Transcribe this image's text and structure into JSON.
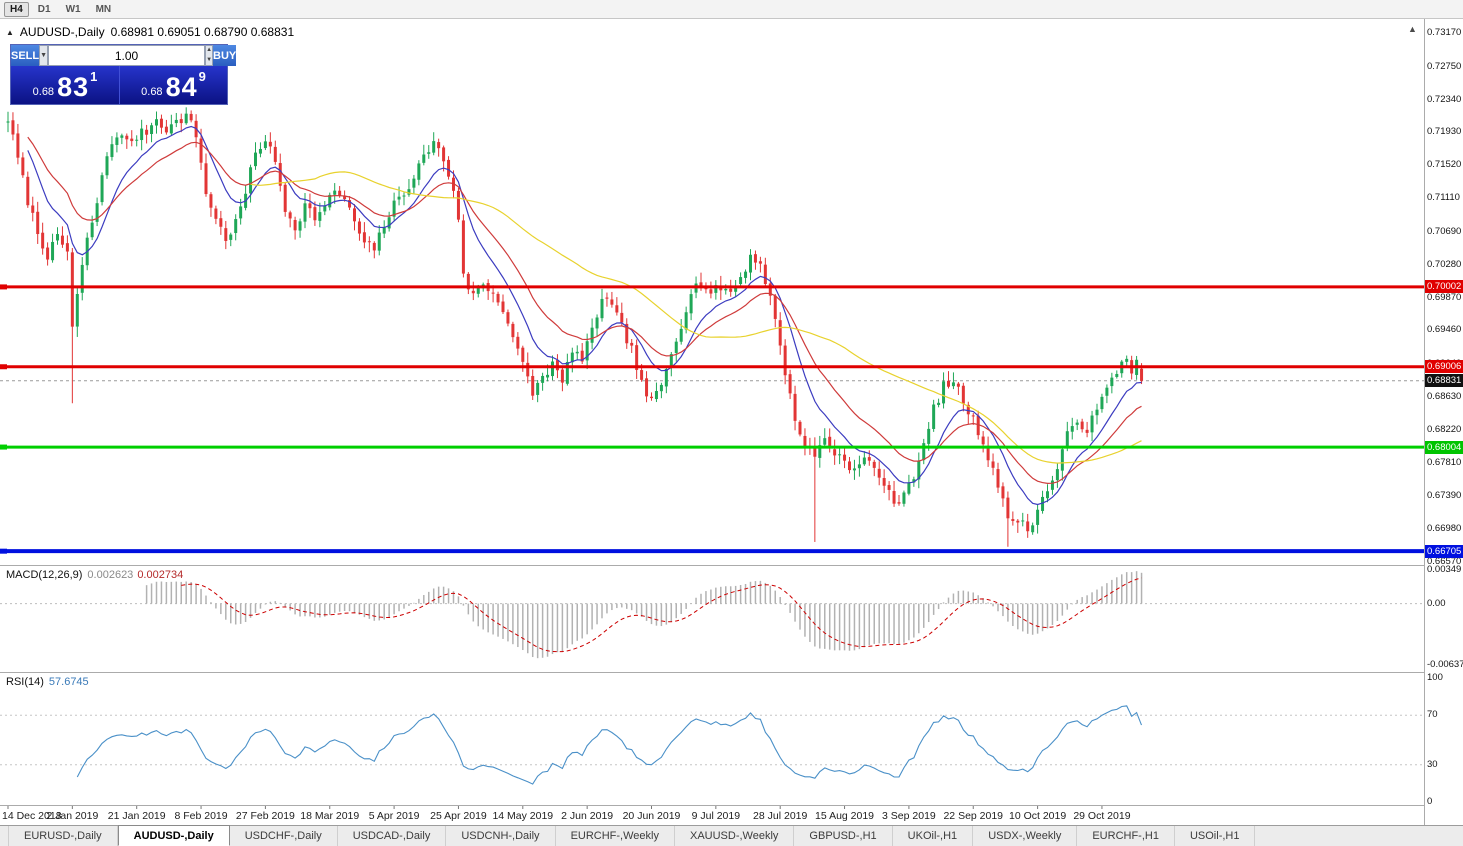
{
  "toolbar": {
    "buttons": [
      {
        "label": "H4",
        "active": true
      },
      {
        "label": "D1",
        "active": false
      },
      {
        "label": "W1",
        "active": false
      },
      {
        "label": "MN",
        "active": false
      }
    ]
  },
  "icons": {
    "one_click_toggle": "▲",
    "scroll_marker": "▲",
    "combo_arrow": "▼",
    "spin_up": "▲",
    "spin_down": "▼"
  },
  "chart_header": {
    "symbol": "AUDUSD-,Daily",
    "ohlc": "0.68981 0.69051 0.68790 0.68831"
  },
  "trade_panel": {
    "sell_label": "SELL",
    "buy_label": "BUY",
    "lot_value": "1.00",
    "sell_price": {
      "prefix": "0.68",
      "big": "83",
      "sup": "1"
    },
    "buy_price": {
      "prefix": "0.68",
      "big": "84",
      "sup": "9"
    }
  },
  "indicators": {
    "macd_label": "MACD(12,26,9)",
    "macd_value_main": "0.002623",
    "macd_value_signal": "0.002734",
    "rsi_label": "RSI(14)",
    "rsi_value": "57.6745"
  },
  "tabbar": {
    "tabs": [
      {
        "label": "EURUSD-,Daily",
        "active": false
      },
      {
        "label": "AUDUSD-,Daily",
        "active": true
      },
      {
        "label": "USDCHF-,Daily",
        "active": false
      },
      {
        "label": "USDCAD-,Daily",
        "active": false
      },
      {
        "label": "USDCNH-,Daily",
        "active": false
      },
      {
        "label": "EURCHF-,Weekly",
        "active": false
      },
      {
        "label": "XAUUSD-,Weekly",
        "active": false
      },
      {
        "label": "GBPUSD-,H1",
        "active": false
      },
      {
        "label": "UKOil-,H1",
        "active": false
      },
      {
        "label": "USDX-,Weekly",
        "active": false
      },
      {
        "label": "EURCHF-,H1",
        "active": false
      },
      {
        "label": "USOil-,H1",
        "active": false
      }
    ]
  },
  "chart_data": {
    "type": "candlestick",
    "symbol": "AUDUSD-",
    "timeframe": "Daily",
    "title": "AUDUSD-,Daily",
    "last_ohlc": {
      "open": 0.68981,
      "high": 0.69051,
      "low": 0.6879,
      "close": 0.68831
    },
    "bars": 230,
    "bars_per_label": 13,
    "noise_seed": 7,
    "up_color": "#1fa757",
    "down_color": "#e23535",
    "x_labels": [
      "14 Dec 2018",
      "2 Jan 2019",
      "21 Jan 2019",
      "8 Feb 2019",
      "27 Feb 2019",
      "18 Mar 2019",
      "5 Apr 2019",
      "25 Apr 2019",
      "14 May 2019",
      "2 Jun 2019",
      "20 Jun 2019",
      "9 Jul 2019",
      "28 Jul 2019",
      "15 Aug 2019",
      "3 Sep 2019",
      "22 Sep 2019",
      "10 Oct 2019",
      "29 Oct 2019"
    ],
    "y_ticks": [
      {
        "v": 0.7317,
        "label": "0.73170"
      },
      {
        "v": 0.7275,
        "label": "0.72750"
      },
      {
        "v": 0.7234,
        "label": "0.72340"
      },
      {
        "v": 0.7193,
        "label": "0.71930"
      },
      {
        "v": 0.7152,
        "label": "0.71520"
      },
      {
        "v": 0.7111,
        "label": "0.71110"
      },
      {
        "v": 0.7069,
        "label": "0.70690"
      },
      {
        "v": 0.7028,
        "label": "0.70280"
      },
      {
        "v": 0.6987,
        "label": "0.69870"
      },
      {
        "v": 0.6946,
        "label": "0.69460"
      },
      {
        "v": 0.6904,
        "label": "0.69040"
      },
      {
        "v": 0.6863,
        "label": "0.68630"
      },
      {
        "v": 0.6822,
        "label": "0.68220"
      },
      {
        "v": 0.6781,
        "label": "0.67810"
      },
      {
        "v": 0.6739,
        "label": "0.67390"
      },
      {
        "v": 0.6698,
        "label": "0.66980"
      },
      {
        "v": 0.6657,
        "label": "0.66570"
      }
    ],
    "price_anchors": [
      [
        0,
        0.721
      ],
      [
        2,
        0.716
      ],
      [
        4,
        0.7108
      ],
      [
        6,
        0.7068
      ],
      [
        8,
        0.704
      ],
      [
        10,
        0.706
      ],
      [
        12,
        0.7045
      ],
      [
        13,
        0.695
      ],
      [
        14,
        0.699
      ],
      [
        16,
        0.7058
      ],
      [
        18,
        0.7105
      ],
      [
        20,
        0.7165
      ],
      [
        22,
        0.7192
      ],
      [
        24,
        0.718
      ],
      [
        26,
        0.7188
      ],
      [
        28,
        0.7195
      ],
      [
        30,
        0.721
      ],
      [
        32,
        0.7198
      ],
      [
        34,
        0.7205
      ],
      [
        36,
        0.7215
      ],
      [
        38,
        0.719
      ],
      [
        40,
        0.7118
      ],
      [
        42,
        0.7085
      ],
      [
        44,
        0.706
      ],
      [
        46,
        0.708
      ],
      [
        48,
        0.7118
      ],
      [
        50,
        0.7168
      ],
      [
        52,
        0.7185
      ],
      [
        54,
        0.7155
      ],
      [
        56,
        0.7098
      ],
      [
        58,
        0.7075
      ],
      [
        60,
        0.7102
      ],
      [
        62,
        0.7088
      ],
      [
        64,
        0.7098
      ],
      [
        66,
        0.7122
      ],
      [
        68,
        0.7108
      ],
      [
        70,
        0.7082
      ],
      [
        72,
        0.7052
      ],
      [
        74,
        0.7048
      ],
      [
        76,
        0.7078
      ],
      [
        78,
        0.7102
      ],
      [
        80,
        0.7118
      ],
      [
        82,
        0.7138
      ],
      [
        84,
        0.7162
      ],
      [
        86,
        0.7182
      ],
      [
        88,
        0.7158
      ],
      [
        90,
        0.7122
      ],
      [
        91,
        0.7088
      ],
      [
        92,
        0.7012
      ],
      [
        94,
        0.699
      ],
      [
        96,
        0.7004
      ],
      [
        98,
        0.6992
      ],
      [
        100,
        0.6974
      ],
      [
        102,
        0.6938
      ],
      [
        104,
        0.6902
      ],
      [
        106,
        0.6868
      ],
      [
        108,
        0.6888
      ],
      [
        110,
        0.6904
      ],
      [
        112,
        0.688
      ],
      [
        114,
        0.6924
      ],
      [
        116,
        0.6908
      ],
      [
        118,
        0.6944
      ],
      [
        120,
        0.6988
      ],
      [
        122,
        0.6974
      ],
      [
        124,
        0.695
      ],
      [
        126,
        0.6922
      ],
      [
        128,
        0.6878
      ],
      [
        130,
        0.6856
      ],
      [
        132,
        0.6876
      ],
      [
        134,
        0.6918
      ],
      [
        136,
        0.6954
      ],
      [
        138,
        0.6996
      ],
      [
        140,
        0.7006
      ],
      [
        142,
        0.6992
      ],
      [
        144,
        0.7
      ],
      [
        146,
        0.6994
      ],
      [
        148,
        0.7012
      ],
      [
        150,
        0.7038
      ],
      [
        152,
        0.703
      ],
      [
        154,
        0.6986
      ],
      [
        156,
        0.6928
      ],
      [
        158,
        0.6862
      ],
      [
        160,
        0.6815
      ],
      [
        162,
        0.6796
      ],
      [
        163,
        0.679
      ],
      [
        165,
        0.6812
      ],
      [
        167,
        0.6792
      ],
      [
        169,
        0.6786
      ],
      [
        171,
        0.677
      ],
      [
        173,
        0.6786
      ],
      [
        175,
        0.6774
      ],
      [
        177,
        0.6756
      ],
      [
        179,
        0.6726
      ],
      [
        181,
        0.6746
      ],
      [
        183,
        0.6766
      ],
      [
        185,
        0.68
      ],
      [
        187,
        0.6848
      ],
      [
        189,
        0.6876
      ],
      [
        191,
        0.6882
      ],
      [
        193,
        0.6858
      ],
      [
        195,
        0.6834
      ],
      [
        197,
        0.6806
      ],
      [
        199,
        0.6774
      ],
      [
        201,
        0.6734
      ],
      [
        202,
        0.6706
      ],
      [
        204,
        0.6712
      ],
      [
        206,
        0.6696
      ],
      [
        208,
        0.6722
      ],
      [
        210,
        0.6748
      ],
      [
        212,
        0.6772
      ],
      [
        214,
        0.6814
      ],
      [
        216,
        0.6836
      ],
      [
        218,
        0.6822
      ],
      [
        220,
        0.6846
      ],
      [
        222,
        0.6872
      ],
      [
        224,
        0.6896
      ],
      [
        226,
        0.6914
      ],
      [
        227,
        0.6898
      ],
      [
        228,
        0.6904
      ],
      [
        229,
        0.68831
      ]
    ],
    "spike_lows": [
      [
        13,
        0.6855
      ],
      [
        163,
        0.6682
      ],
      [
        202,
        0.6676
      ]
    ],
    "moving_averages": [
      {
        "period": 10,
        "type": "ema",
        "color": "#3c3cc0"
      },
      {
        "period": 21,
        "type": "ema",
        "color": "#cf3b3b"
      },
      {
        "period": 50,
        "type": "sma",
        "color": "#e8d22e"
      }
    ],
    "hlines": [
      {
        "price": 0.70002,
        "color": "#e00000",
        "width": 3,
        "tag": "0.70002",
        "tag_bg": "#e00000"
      },
      {
        "price": 0.69006,
        "color": "#e00000",
        "width": 3,
        "tag": "0.69006",
        "tag_bg": "#e00000"
      },
      {
        "price": 0.68004,
        "color": "#00cf00",
        "width": 3,
        "tag": "0.68004",
        "tag_bg": "#00c400"
      },
      {
        "price": 0.66705,
        "color": "#0010e0",
        "width": 4,
        "tag": "0.66705",
        "tag_bg": "#0010e0"
      }
    ],
    "current_price": {
      "value": 0.68831,
      "tag": "0.68831",
      "tag_bg": "#111111",
      "line_color": "#9a9a9a"
    },
    "macd": {
      "name": "MACD",
      "params": [
        12,
        26,
        9
      ],
      "value_main": 0.002623,
      "value_signal": 0.002734,
      "hist_color": "#b2b2b2",
      "signal_color": "#cc0000",
      "range": [
        -0.0068,
        0.0037
      ],
      "y_ticks": [
        {
          "v": 0.00349,
          "label": "0.00349"
        },
        {
          "v": 0,
          "label": "0.00"
        },
        {
          "v": -0.00637,
          "label": "-0.00637"
        }
      ]
    },
    "rsi": {
      "name": "RSI",
      "period": 14,
      "value": 57.6745,
      "color": "#4a90c8",
      "range": [
        0,
        100
      ],
      "levels": [
        70,
        30
      ],
      "y_ticks": [
        {
          "v": 100,
          "label": "100"
        },
        {
          "v": 70,
          "label": "70"
        },
        {
          "v": 30,
          "label": "30"
        },
        {
          "v": 0,
          "label": "0"
        }
      ]
    }
  }
}
